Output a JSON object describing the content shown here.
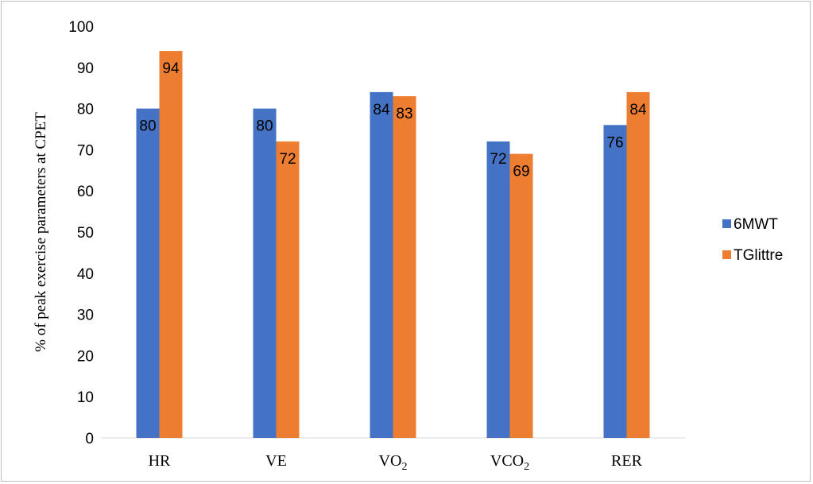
{
  "chart_data": {
    "type": "bar",
    "title": "",
    "xlabel": "",
    "ylabel": "% of peak exercise parameters at CPET",
    "ylim": [
      0,
      100
    ],
    "yticks": [
      0,
      10,
      20,
      30,
      40,
      50,
      60,
      70,
      80,
      90,
      100
    ],
    "categories": [
      {
        "main": "HR",
        "sub": ""
      },
      {
        "main": "VE",
        "sub": ""
      },
      {
        "main": "VO",
        "sub": "2"
      },
      {
        "main": "VCO",
        "sub": "2"
      },
      {
        "main": "RER",
        "sub": ""
      }
    ],
    "series": [
      {
        "name": "6MWT",
        "values": [
          80,
          80,
          84,
          72,
          76
        ],
        "color": "#4472c4"
      },
      {
        "name": "TGlittre",
        "values": [
          94,
          72,
          83,
          69,
          84
        ],
        "color": "#ed7d31"
      }
    ],
    "grid": false,
    "legend_position": "right",
    "data_labels": true
  }
}
